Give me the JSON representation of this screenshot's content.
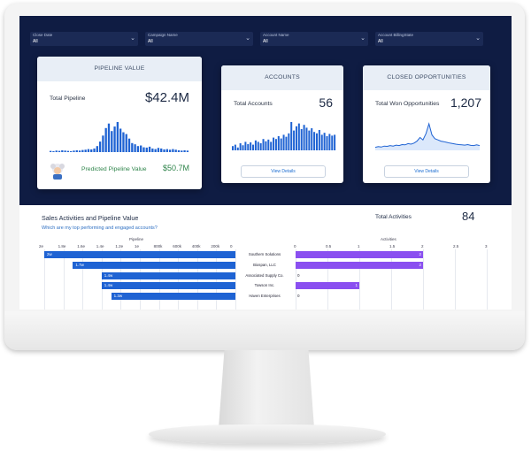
{
  "filters": [
    {
      "label": "Close Date",
      "value": "All"
    },
    {
      "label": "Campaign Name",
      "value": "All"
    },
    {
      "label": "Account Name",
      "value": "All"
    },
    {
      "label": "Account BillingState",
      "value": "All"
    }
  ],
  "pipeline_card": {
    "title": "PIPELINE VALUE",
    "label": "Total Pipeline",
    "value": "$42.4M",
    "predicted_label": "Predicted Pipeline Value",
    "predicted_value": "$50.7M",
    "spark": [
      0.04,
      0.03,
      0.05,
      0.04,
      0.06,
      0.05,
      0.04,
      0.03,
      0.05,
      0.06,
      0.05,
      0.07,
      0.08,
      0.1,
      0.09,
      0.12,
      0.2,
      0.35,
      0.55,
      0.8,
      0.95,
      0.7,
      0.85,
      1.0,
      0.78,
      0.66,
      0.6,
      0.45,
      0.3,
      0.26,
      0.2,
      0.22,
      0.16,
      0.15,
      0.18,
      0.12,
      0.1,
      0.14,
      0.12,
      0.09,
      0.1,
      0.08,
      0.1,
      0.08,
      0.06,
      0.05,
      0.06,
      0.05
    ],
    "colors": {
      "accent": "#1f63d3",
      "predicted": "#2e844a"
    }
  },
  "accounts_card": {
    "title": "ACCOUNTS",
    "label": "Total Accounts",
    "value": "56",
    "button": "View Details",
    "spark": [
      0.15,
      0.2,
      0.1,
      0.25,
      0.18,
      0.3,
      0.22,
      0.28,
      0.2,
      0.35,
      0.3,
      0.25,
      0.4,
      0.32,
      0.38,
      0.3,
      0.45,
      0.4,
      0.5,
      0.42,
      0.55,
      0.48,
      0.6,
      1.0,
      0.7,
      0.85,
      0.95,
      0.75,
      0.9,
      0.8,
      0.7,
      0.78,
      0.65,
      0.6,
      0.72,
      0.55,
      0.62,
      0.5,
      0.58,
      0.52,
      0.55
    ]
  },
  "closed_card": {
    "title": "CLOSED OPPORTUNITIES",
    "label": "Total Won Opportunities",
    "value": "1,207",
    "button": "View Details",
    "spark": [
      0.05,
      0.08,
      0.06,
      0.1,
      0.09,
      0.12,
      0.1,
      0.14,
      0.12,
      0.16,
      0.15,
      0.2,
      0.18,
      0.22,
      0.3,
      0.45,
      0.35,
      0.6,
      1.0,
      0.55,
      0.4,
      0.35,
      0.3,
      0.28,
      0.25,
      0.22,
      0.2,
      0.18,
      0.16,
      0.15,
      0.14,
      0.16,
      0.13,
      0.12,
      0.15,
      0.12
    ]
  },
  "lower": {
    "title": "Sales Activities and Pipeline Value",
    "subtitle": "Which are my top performing and engaged accounts?",
    "total_activities_label": "Total Activities",
    "total_activities_value": "84"
  },
  "chart_data": {
    "type": "bar",
    "categories": [
      "Southern Solutions",
      "Biospan, LLC",
      "Associated Supply Co.",
      "Towson Inc.",
      "Haven Enterprises"
    ],
    "series": [
      {
        "name": "Pipeline",
        "values": [
          2000000,
          1700000,
          1400000,
          1400000,
          1300000
        ],
        "labels": [
          "2w",
          "1.7w",
          "1.4w",
          "1.4w",
          "1.3w"
        ]
      },
      {
        "name": "Activities",
        "values": [
          2,
          2,
          0,
          1,
          0
        ]
      }
    ],
    "pipeline_ticks": [
      "2e",
      "1.8e",
      "1.6e",
      "1.4e",
      "1.2e",
      "1e",
      "800k",
      "600k",
      "400k",
      "200k",
      "0"
    ],
    "pipeline_lim": [
      0,
      2000000
    ],
    "activity_ticks": [
      "0",
      "0.5",
      "1",
      "1.5",
      "2",
      "2.5",
      "3"
    ],
    "activity_lim": [
      0,
      3
    ]
  }
}
